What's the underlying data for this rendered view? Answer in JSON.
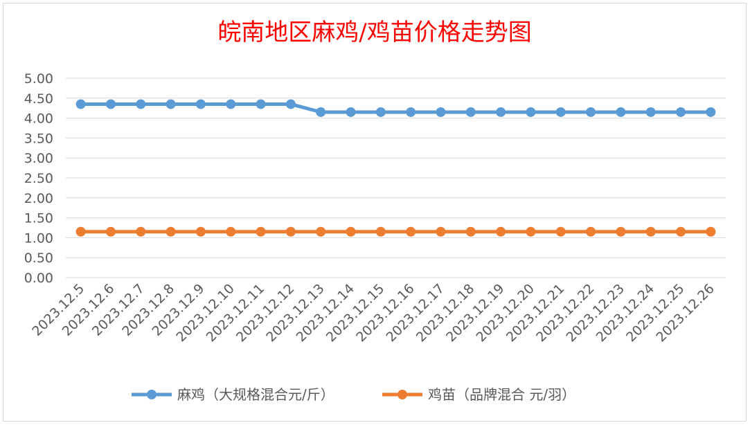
{
  "chart_data": {
    "type": "line",
    "title": "皖南地区麻鸡/鸡苗价格走势图",
    "categories": [
      "2023.12.5",
      "2023.12.6",
      "2023.12.7",
      "2023.12.8",
      "2023.12.9",
      "2023.12.10",
      "2023.12.11",
      "2023.12.12",
      "2023.12.13",
      "2023.12.14",
      "2023.12.15",
      "2023.12.16",
      "2023.12.17",
      "2023.12.18",
      "2023.12.19",
      "2023.12.20",
      "2023.12.21",
      "2023.12.22",
      "2023.12.23",
      "2023.12.24",
      "2023.12.25",
      "2023.12.26"
    ],
    "y_ticks": [
      "0.00",
      "0.50",
      "1.00",
      "1.50",
      "2.00",
      "2.50",
      "3.00",
      "3.50",
      "4.00",
      "4.50",
      "5.00"
    ],
    "ylim": [
      0,
      5
    ],
    "grid": true,
    "legend_position": "bottom",
    "series": [
      {
        "name": "麻鸡（大规格混合元/斤）",
        "color": "#5b9bd5",
        "values": [
          4.35,
          4.35,
          4.35,
          4.35,
          4.35,
          4.35,
          4.35,
          4.35,
          4.15,
          4.15,
          4.15,
          4.15,
          4.15,
          4.15,
          4.15,
          4.15,
          4.15,
          4.15,
          4.15,
          4.15,
          4.15,
          4.15
        ]
      },
      {
        "name": "鸡苗（品牌混合 元/羽）",
        "color": "#ed7d31",
        "values": [
          1.15,
          1.15,
          1.15,
          1.15,
          1.15,
          1.15,
          1.15,
          1.15,
          1.15,
          1.15,
          1.15,
          1.15,
          1.15,
          1.15,
          1.15,
          1.15,
          1.15,
          1.15,
          1.15,
          1.15,
          1.15,
          1.15
        ]
      }
    ]
  }
}
